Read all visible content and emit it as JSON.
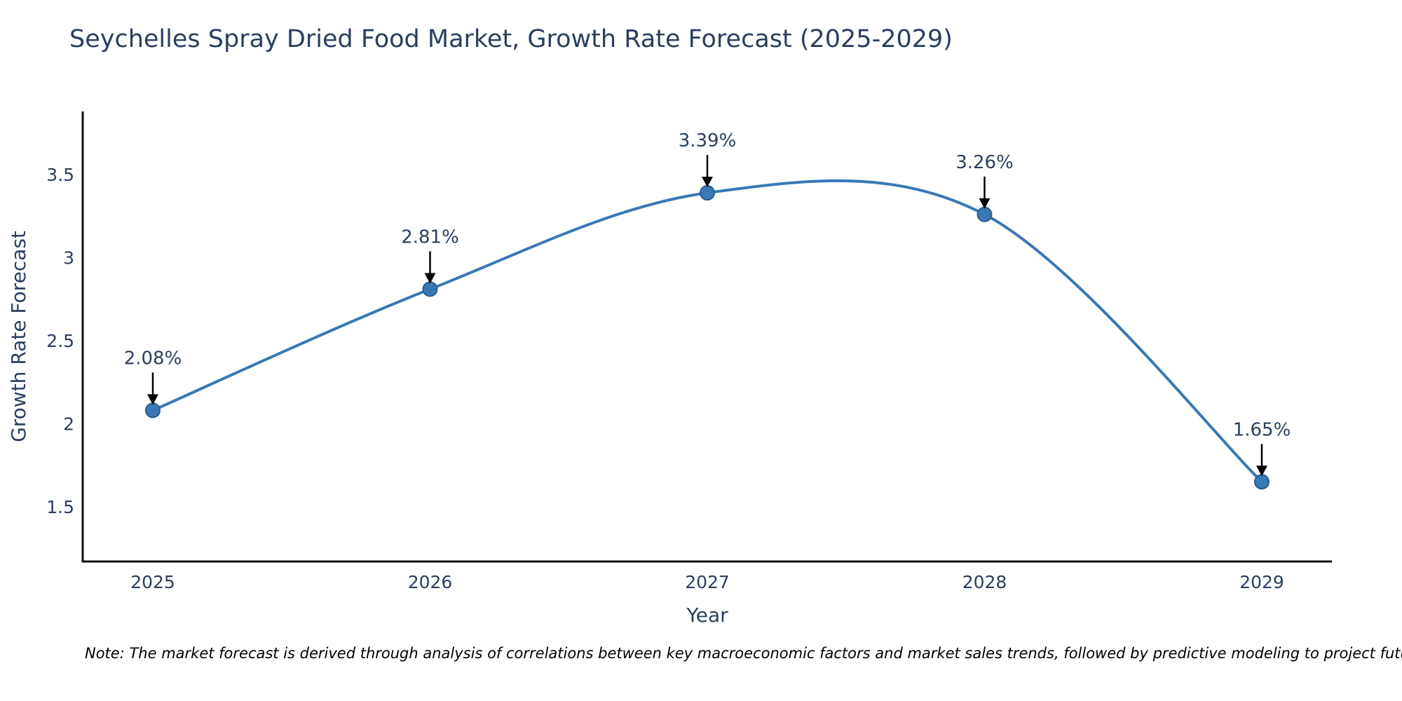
{
  "title": "Seychelles Spray Dried Food Market, Growth Rate Forecast (2025-2029)",
  "note": "Note: The market forecast is derived through analysis of correlations between key macroeconomic factors and market sales trends, followed by predictive modeling to project future sales",
  "chart_data": {
    "type": "line",
    "title": "Seychelles Spray Dried Food Market, Growth Rate Forecast (2025-2029)",
    "xlabel": "Year",
    "ylabel": "Growth Rate Forecast",
    "x": [
      "2025",
      "2026",
      "2027",
      "2028",
      "2029"
    ],
    "values": [
      2.08,
      2.81,
      3.39,
      3.26,
      1.65
    ],
    "point_labels": [
      "2.08%",
      "2.81%",
      "3.39%",
      "3.26%",
      "1.65%"
    ],
    "yticks": [
      1.5,
      2,
      2.5,
      3,
      3.5
    ],
    "ylim": [
      1.17,
      3.88
    ],
    "curve": "spline",
    "grid": false,
    "legend": "none",
    "colors": {
      "line": "#3a78b5",
      "marker_fill": "#3a78b5",
      "marker_edge": "#275d8e",
      "axis_line": "#0f0f0f",
      "text": "#2a3f5f",
      "annotation_arrow": "#000000"
    }
  }
}
